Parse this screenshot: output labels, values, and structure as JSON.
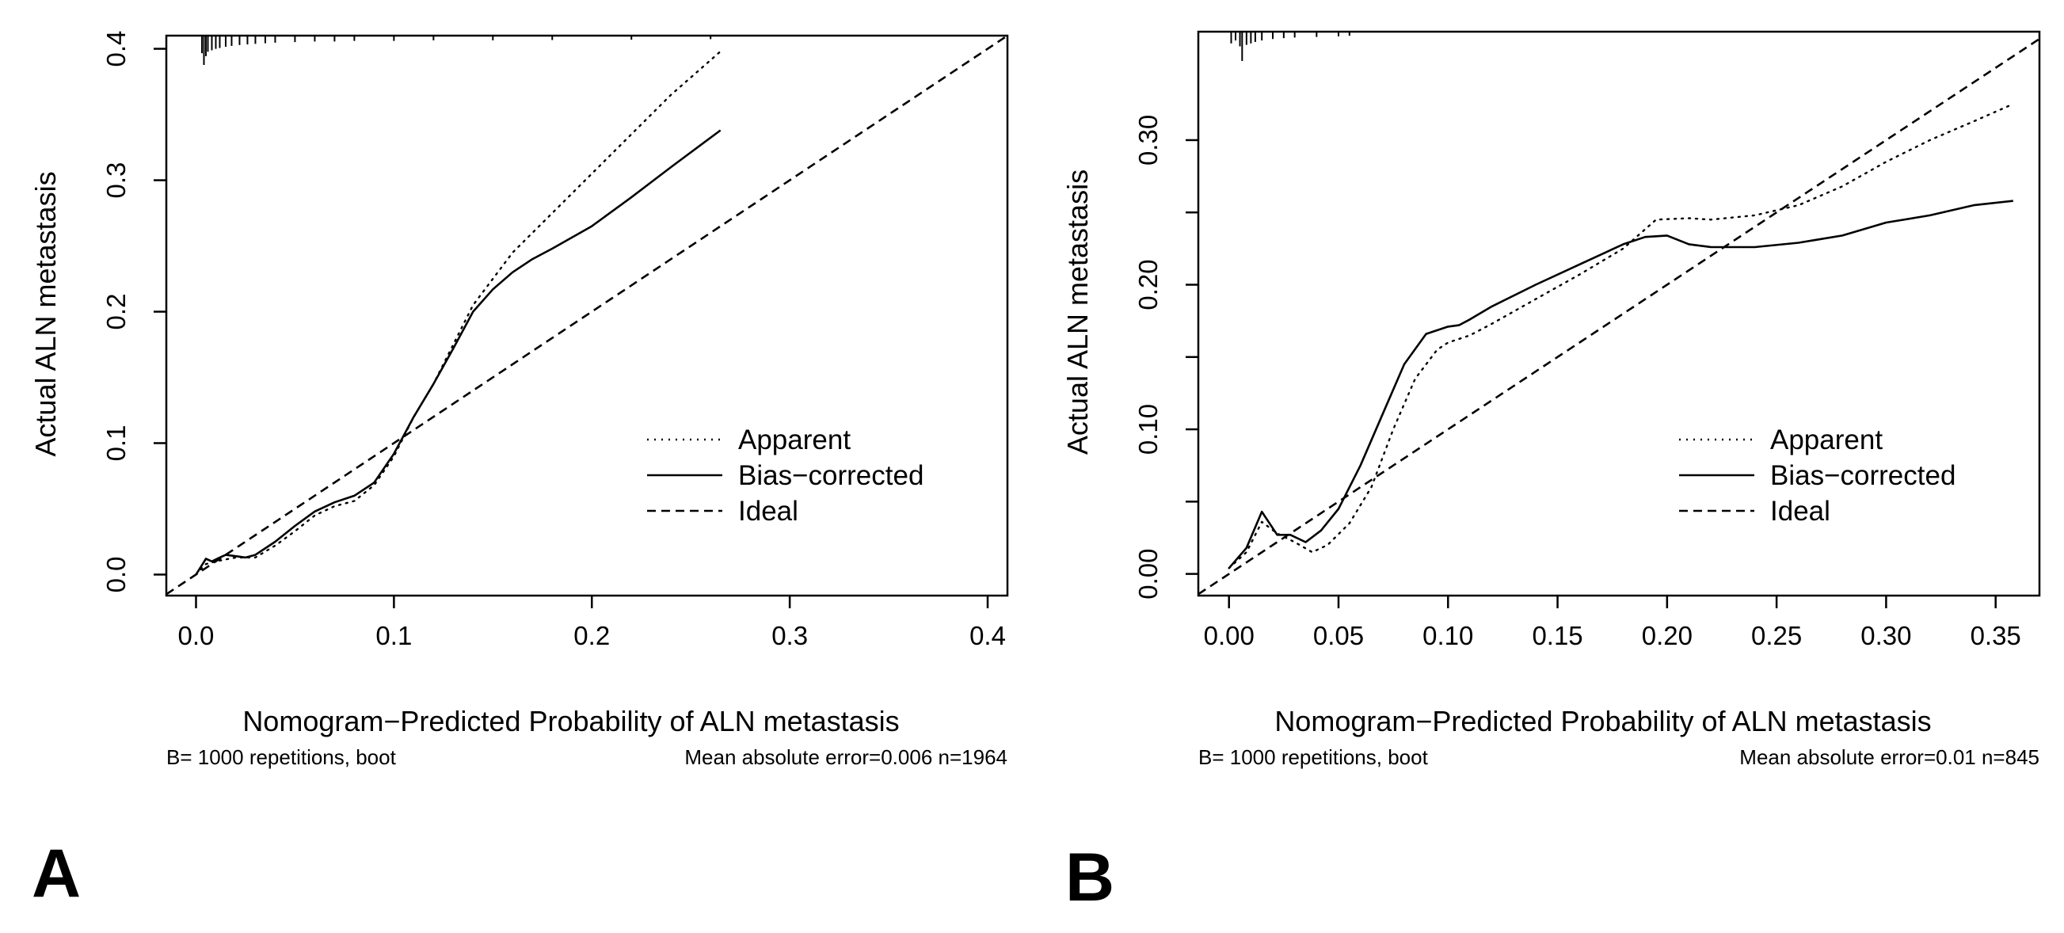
{
  "chart_data": [
    {
      "type": "line",
      "panel_label": "A",
      "xlabel": "Nomogram−Predicted Probability of ALN metastasis",
      "ylabel": "Actual ALN metastasis",
      "xlim": [
        -0.015,
        0.41
      ],
      "ylim": [
        -0.016,
        0.41
      ],
      "x_ticks": [
        0.0,
        0.1,
        0.2,
        0.3,
        0.4
      ],
      "x_tick_labels": [
        "0.0",
        "0.1",
        "0.2",
        "0.3",
        "0.4"
      ],
      "y_ticks": [
        0.0,
        0.1,
        0.2,
        0.3,
        0.4
      ],
      "y_tick_labels": [
        "0.0",
        "0.1",
        "0.2",
        "0.3",
        "0.4"
      ],
      "legend": {
        "position": "bottom-right",
        "entries": [
          "Apparent",
          "Bias−corrected",
          "Ideal"
        ]
      },
      "footnote_left": "B= 1000 repetitions, boot",
      "footnote_right": "Mean absolute error=0.006 n=1964",
      "rug": {
        "x": [
          0.003,
          0.004,
          0.005,
          0.006,
          0.008,
          0.01,
          0.012,
          0.015,
          0.018,
          0.022,
          0.026,
          0.03,
          0.035,
          0.04,
          0.05,
          0.06,
          0.07,
          0.08,
          0.1,
          0.12,
          0.15,
          0.18,
          0.22,
          0.26
        ],
        "heights": [
          0.6,
          1.0,
          0.7,
          0.55,
          0.5,
          0.45,
          0.42,
          0.38,
          0.35,
          0.32,
          0.3,
          0.28,
          0.26,
          0.24,
          0.22,
          0.2,
          0.2,
          0.18,
          0.18,
          0.16,
          0.16,
          0.15,
          0.14,
          0.12
        ]
      },
      "series": [
        {
          "name": "Apparent",
          "style": "dotted",
          "x": [
            0.0,
            0.005,
            0.01,
            0.02,
            0.03,
            0.04,
            0.05,
            0.06,
            0.07,
            0.08,
            0.09,
            0.1,
            0.11,
            0.12,
            0.13,
            0.14,
            0.15,
            0.16,
            0.18,
            0.2,
            0.22,
            0.24,
            0.265
          ],
          "y": [
            0.0,
            0.008,
            0.01,
            0.013,
            0.013,
            0.022,
            0.033,
            0.045,
            0.052,
            0.056,
            0.068,
            0.09,
            0.12,
            0.145,
            0.175,
            0.205,
            0.225,
            0.245,
            0.275,
            0.305,
            0.335,
            0.365,
            0.398
          ]
        },
        {
          "name": "Bias−corrected",
          "style": "solid",
          "x": [
            0.0,
            0.005,
            0.008,
            0.012,
            0.015,
            0.02,
            0.025,
            0.03,
            0.04,
            0.05,
            0.06,
            0.07,
            0.08,
            0.09,
            0.1,
            0.11,
            0.12,
            0.13,
            0.14,
            0.15,
            0.16,
            0.17,
            0.18,
            0.2,
            0.22,
            0.24,
            0.265
          ],
          "y": [
            0.0,
            0.012,
            0.01,
            0.013,
            0.015,
            0.014,
            0.013,
            0.015,
            0.025,
            0.037,
            0.048,
            0.055,
            0.06,
            0.07,
            0.092,
            0.12,
            0.145,
            0.172,
            0.2,
            0.217,
            0.23,
            0.24,
            0.248,
            0.265,
            0.287,
            0.31,
            0.338
          ]
        },
        {
          "name": "Ideal",
          "style": "dashed",
          "x": [
            -0.015,
            0.41
          ],
          "y": [
            -0.015,
            0.41
          ]
        }
      ]
    },
    {
      "type": "line",
      "panel_label": "B",
      "xlabel": "Nomogram−Predicted Probability of ALN metastasis",
      "ylabel": "Actual ALN metastasis",
      "xlim": [
        -0.014,
        0.37
      ],
      "ylim": [
        -0.015,
        0.375
      ],
      "x_ticks": [
        0.0,
        0.05,
        0.1,
        0.15,
        0.2,
        0.25,
        0.3,
        0.35
      ],
      "x_tick_labels": [
        "0.00",
        "0.05",
        "0.10",
        "0.15",
        "0.20",
        "0.25",
        "0.30",
        "0.35"
      ],
      "y_ticks": [
        0.0,
        0.1,
        0.2,
        0.3
      ],
      "y_tick_labels": [
        "0.00",
        "0.10",
        "0.20",
        "0.30"
      ],
      "y_minor_ticks": [
        0.05,
        0.15,
        0.25
      ],
      "legend": {
        "position": "bottom-right",
        "entries": [
          "Apparent",
          "Bias−corrected",
          "Ideal"
        ]
      },
      "footnote_left": "B= 1000 repetitions, boot",
      "footnote_right": "Mean absolute error=0.01 n=845",
      "rug": {
        "x": [
          0.001,
          0.003,
          0.005,
          0.006,
          0.008,
          0.01,
          0.012,
          0.015,
          0.02,
          0.025,
          0.03,
          0.04,
          0.05,
          0.055
        ],
        "heights": [
          0.4,
          0.3,
          0.5,
          1.0,
          0.45,
          0.4,
          0.35,
          0.3,
          0.25,
          0.22,
          0.2,
          0.18,
          0.16,
          0.14
        ]
      },
      "series": [
        {
          "name": "Apparent",
          "style": "dotted",
          "x": [
            0.0,
            0.008,
            0.015,
            0.022,
            0.03,
            0.038,
            0.045,
            0.055,
            0.065,
            0.075,
            0.085,
            0.095,
            0.1,
            0.11,
            0.12,
            0.14,
            0.16,
            0.18,
            0.195,
            0.21,
            0.22,
            0.24,
            0.26,
            0.28,
            0.3,
            0.32,
            0.34,
            0.358
          ],
          "y": [
            0.004,
            0.015,
            0.036,
            0.028,
            0.022,
            0.015,
            0.02,
            0.035,
            0.06,
            0.1,
            0.135,
            0.155,
            0.16,
            0.165,
            0.173,
            0.19,
            0.207,
            0.225,
            0.245,
            0.246,
            0.245,
            0.248,
            0.255,
            0.268,
            0.285,
            0.3,
            0.313,
            0.325
          ]
        },
        {
          "name": "Bias−corrected",
          "style": "solid",
          "x": [
            0.0,
            0.008,
            0.015,
            0.022,
            0.028,
            0.035,
            0.042,
            0.05,
            0.06,
            0.07,
            0.08,
            0.09,
            0.1,
            0.105,
            0.11,
            0.12,
            0.14,
            0.16,
            0.18,
            0.19,
            0.2,
            0.21,
            0.22,
            0.24,
            0.26,
            0.28,
            0.3,
            0.32,
            0.34,
            0.358
          ],
          "y": [
            0.004,
            0.018,
            0.043,
            0.027,
            0.027,
            0.022,
            0.03,
            0.045,
            0.075,
            0.11,
            0.145,
            0.166,
            0.171,
            0.172,
            0.176,
            0.185,
            0.2,
            0.214,
            0.228,
            0.233,
            0.234,
            0.228,
            0.226,
            0.226,
            0.229,
            0.234,
            0.243,
            0.248,
            0.255,
            0.258
          ]
        },
        {
          "name": "Ideal",
          "style": "dashed",
          "x": [
            -0.014,
            0.37
          ],
          "y": [
            -0.014,
            0.37
          ]
        }
      ]
    }
  ]
}
